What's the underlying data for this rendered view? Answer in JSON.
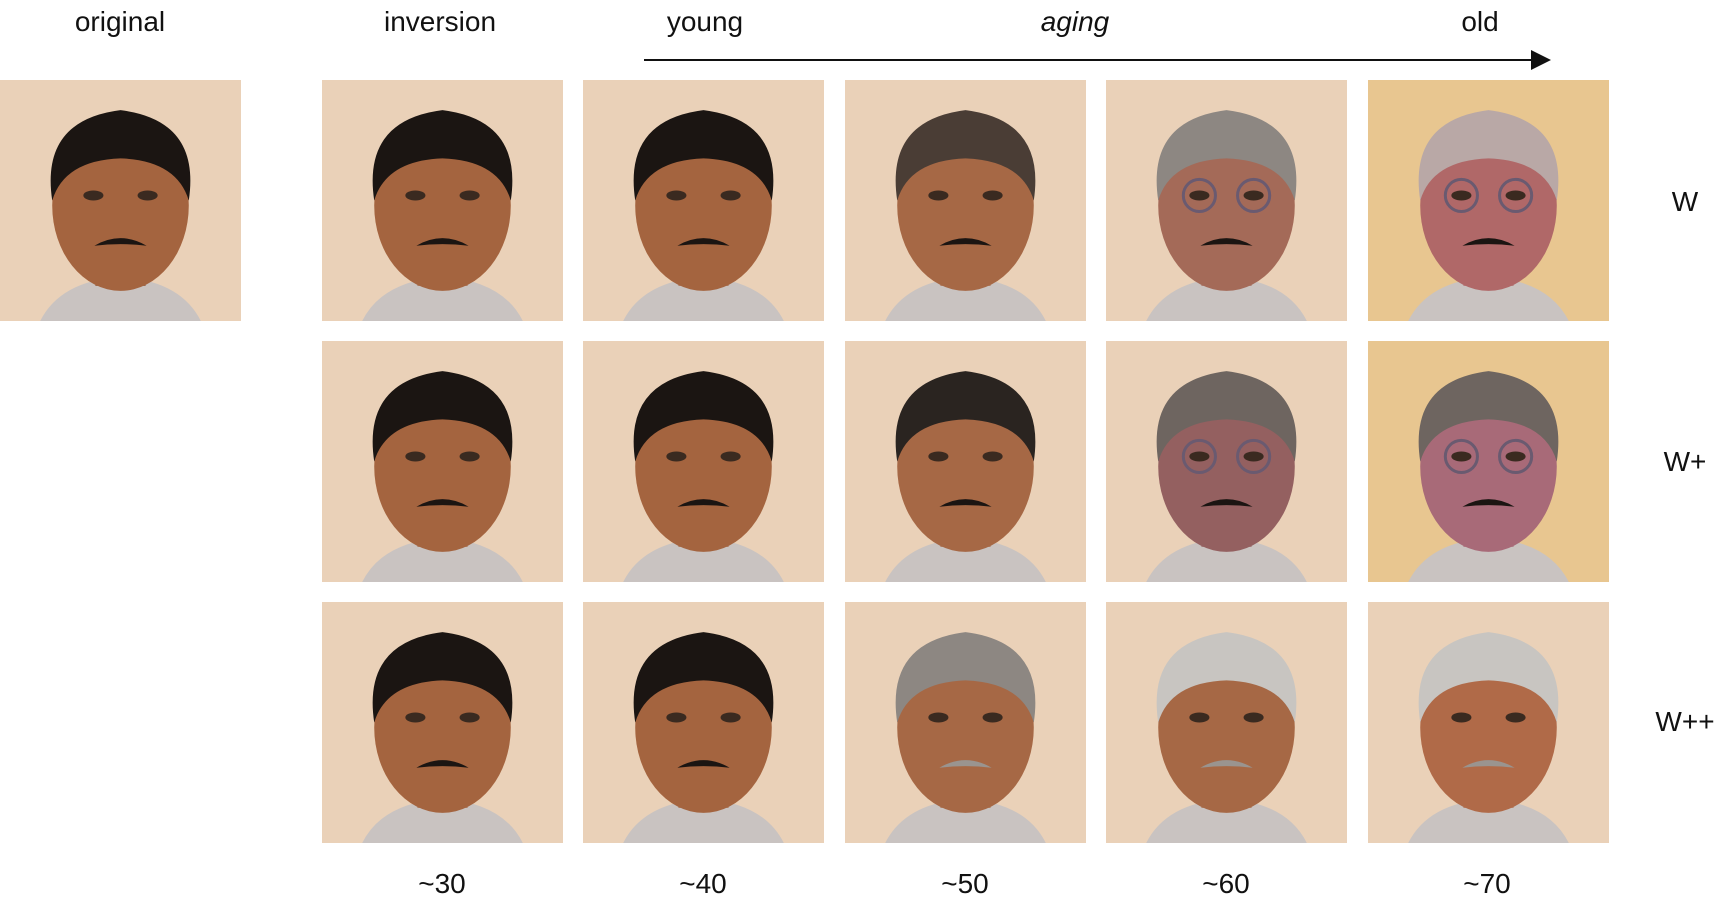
{
  "header": {
    "original": "original",
    "inversion": "inversion",
    "young": "young",
    "aging": "aging",
    "old": "old"
  },
  "rows": [
    {
      "label": "W"
    },
    {
      "label": "W+"
    },
    {
      "label": "W++"
    }
  ],
  "ages": [
    "~30",
    "~40",
    "~50",
    "~60",
    "~70"
  ],
  "colors": {
    "background": "#ead1b8",
    "skin": "#a4643f",
    "hair_dark": "#1b1512",
    "hair_gray": "#8d8782",
    "hair_white": "#c8c5c1",
    "shirt": "#c9c3c1"
  }
}
